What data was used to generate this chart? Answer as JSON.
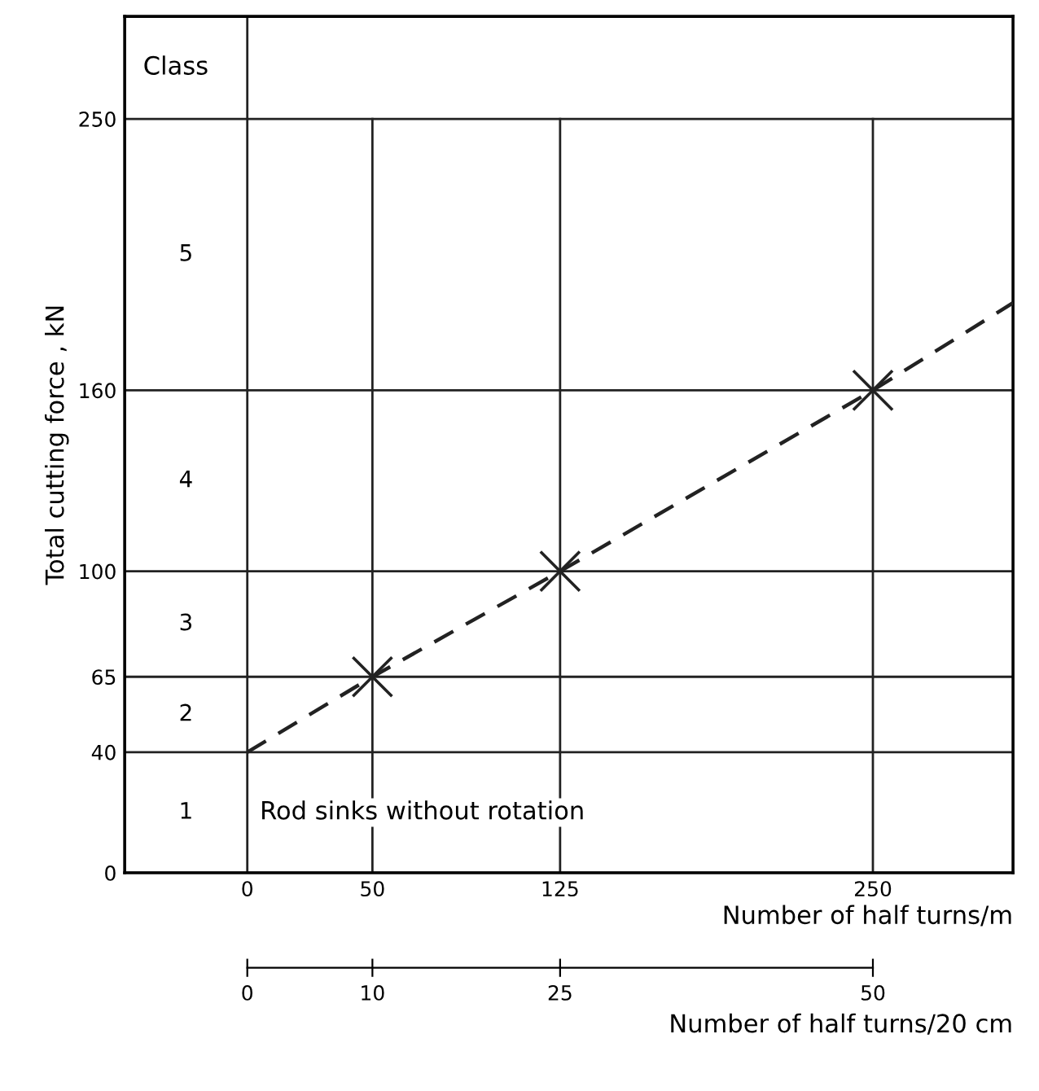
{
  "chart_data": {
    "type": "line",
    "xlabel": "Number of half turns/m",
    "ylabel": "Total cutting force , kN",
    "x2label": "Number of half turns/20 cm",
    "series": [
      {
        "color": "#222222",
        "line_style": "dashed",
        "x": [
          0,
          50,
          125,
          250,
          306
        ],
        "values": [
          40,
          65,
          100,
          160,
          189
        ]
      },
      {
        "type": "scatter",
        "color": "#222222",
        "marker": "cross",
        "x": [
          50,
          125,
          250
        ],
        "values": [
          65,
          100,
          160
        ]
      }
    ],
    "xlim": [
      -49,
      306
    ],
    "xticks": [
      0,
      50,
      125,
      250
    ],
    "ylim": [
      0,
      284
    ],
    "yticks": [
      0,
      40,
      65,
      100,
      160,
      250
    ],
    "x2lim": [
      0,
      50
    ],
    "x2ticks": [
      0,
      10,
      25,
      50
    ],
    "annotations": [
      "Class",
      "Rod sinks without rotation",
      "1",
      "2",
      "3",
      "4",
      "5"
    ],
    "grid": true
  }
}
